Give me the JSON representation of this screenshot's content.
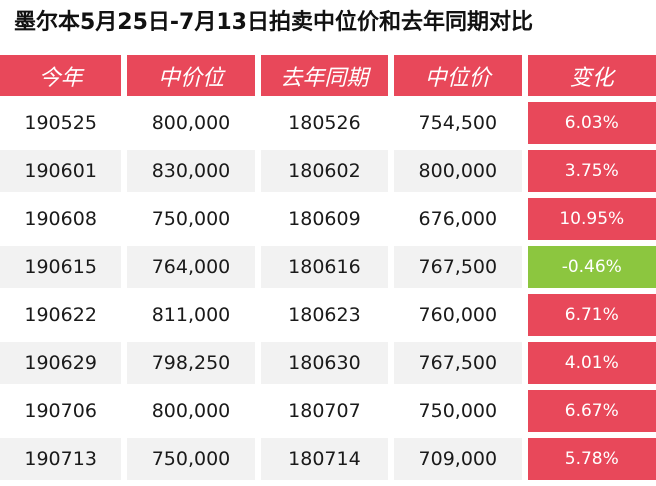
{
  "title": "墨尔本5月25日-7月13日拍卖中位价和去年同期对比",
  "headers": [
    "今年",
    "中价位",
    "去年同期",
    "中位价",
    "变化"
  ],
  "rows": [
    {
      "this_year": "190525",
      "median_this": "800,000",
      "last_year": "180526",
      "median_last": "754,500",
      "change": "6.03%",
      "trend": "up"
    },
    {
      "this_year": "190601",
      "median_this": "830,000",
      "last_year": "180602",
      "median_last": "800,000",
      "change": "3.75%",
      "trend": "up"
    },
    {
      "this_year": "190608",
      "median_this": "750,000",
      "last_year": "180609",
      "median_last": "676,000",
      "change": "10.95%",
      "trend": "up"
    },
    {
      "this_year": "190615",
      "median_this": "764,000",
      "last_year": "180616",
      "median_last": "767,500",
      "change": "-0.46%",
      "trend": "down"
    },
    {
      "this_year": "190622",
      "median_this": "811,000",
      "last_year": "180623",
      "median_last": "760,000",
      "change": "6.71%",
      "trend": "up"
    },
    {
      "this_year": "190629",
      "median_this": "798,250",
      "last_year": "180630",
      "median_last": "767,500",
      "change": "4.01%",
      "trend": "up"
    },
    {
      "this_year": "190706",
      "median_this": "800,000",
      "last_year": "180707",
      "median_last": "750,000",
      "change": "6.67%",
      "trend": "up"
    },
    {
      "this_year": "190713",
      "median_this": "750,000",
      "last_year": "180714",
      "median_last": "709,000",
      "change": "5.78%",
      "trend": "up"
    }
  ],
  "colors": {
    "header": "#e8485a",
    "increase": "#e8485a",
    "decrease": "#8cc63f"
  }
}
